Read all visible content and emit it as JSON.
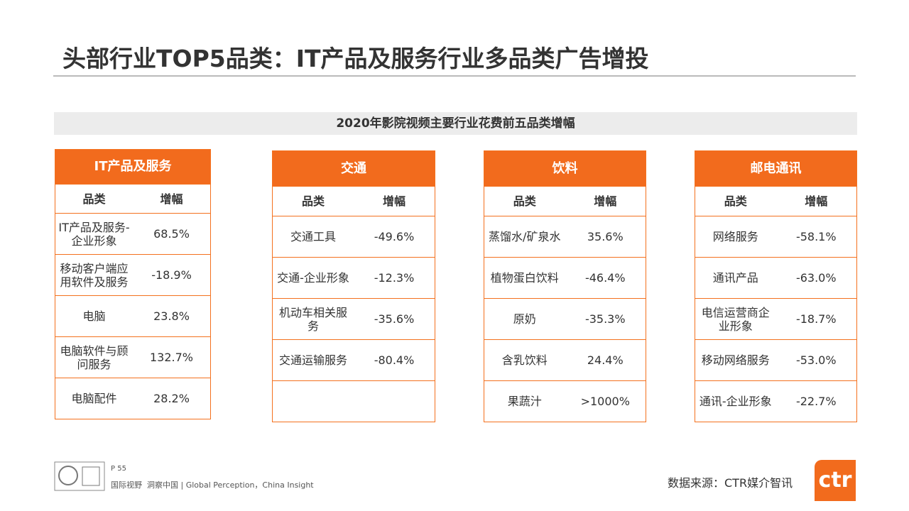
{
  "header": {
    "title": "头部行业TOP5品类：IT产品及服务行业多品类广告增投"
  },
  "subtitle": "2020年影院视频主要行业花费前五品类增幅",
  "tables": [
    {
      "title": "IT产品及服务",
      "columns": [
        "品类",
        "增幅"
      ],
      "rows": [
        [
          "IT产品及服务-企业形象",
          "68.5%"
        ],
        [
          "移动客户端应用软件及服务",
          "-18.9%"
        ],
        [
          "电脑",
          "23.8%"
        ],
        [
          "电脑软件与顾问服务",
          "132.7%"
        ],
        [
          "电脑配件",
          "28.2%"
        ]
      ]
    },
    {
      "title": "交通",
      "columns": [
        "品类",
        "增幅"
      ],
      "rows": [
        [
          "交通工具",
          "-49.6%"
        ],
        [
          "交通-企业形象",
          "-12.3%"
        ],
        [
          "机动车相关服务",
          "-35.6%"
        ],
        [
          "交通运输服务",
          "-80.4%"
        ]
      ]
    },
    {
      "title": "饮料",
      "columns": [
        "品类",
        "增幅"
      ],
      "rows": [
        [
          "蒸馏水/矿泉水",
          "35.6%"
        ],
        [
          "植物蛋白饮料",
          "-46.4%"
        ],
        [
          "原奶",
          "-35.3%"
        ],
        [
          "含乳饮料",
          "24.4%"
        ],
        [
          "果蔬汁",
          ">1000%"
        ]
      ]
    },
    {
      "title": "邮电通讯",
      "columns": [
        "品类",
        "增幅"
      ],
      "rows": [
        [
          "网络服务",
          "-58.1%"
        ],
        [
          "通讯产品",
          "-63.0%"
        ],
        [
          "电信运营商企业形象",
          "-18.7%"
        ],
        [
          "移动网络服务",
          "-53.0%"
        ],
        [
          "通讯-企业形象",
          "-22.7%"
        ]
      ]
    }
  ],
  "footer": {
    "page": "P 55",
    "slogan": "国际视野  洞察中国 | Global Perception，China Insight",
    "source": "数据来源：CTR媒介智讯",
    "logo": "ctr"
  }
}
